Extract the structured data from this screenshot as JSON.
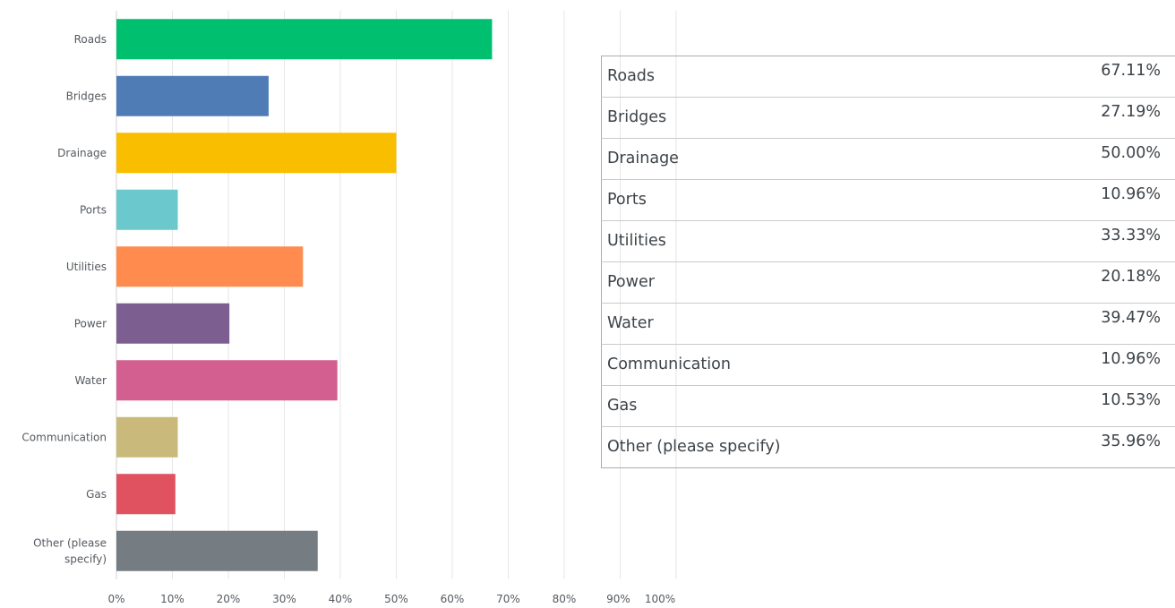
{
  "chart_data": {
    "type": "bar",
    "orientation": "horizontal",
    "categories": [
      "Roads",
      "Bridges",
      "Drainage",
      "Ports",
      "Utilities",
      "Power",
      "Water",
      "Communication",
      "Gas",
      "Other (please specify)"
    ],
    "category_label_lines": [
      [
        "Roads"
      ],
      [
        "Bridges"
      ],
      [
        "Drainage"
      ],
      [
        "Ports"
      ],
      [
        "Utilities"
      ],
      [
        "Power"
      ],
      [
        "Water"
      ],
      [
        "Communication"
      ],
      [
        "Gas"
      ],
      [
        "Other (please",
        "specify)"
      ]
    ],
    "values": [
      67.11,
      27.19,
      50.0,
      10.96,
      33.33,
      20.18,
      39.47,
      10.96,
      10.53,
      35.96
    ],
    "colors": [
      "#00bf6f",
      "#507cb6",
      "#f9be00",
      "#6bc8cd",
      "#ff8b4f",
      "#7d5e90",
      "#d25f90",
      "#c9b97a",
      "#e05260",
      "#757d82"
    ],
    "xlim": [
      0,
      100
    ],
    "x_ticks": [
      "0%",
      "10%",
      "20%",
      "30%",
      "40%",
      "50%",
      "60%",
      "70%",
      "80%",
      "90%",
      "100%"
    ],
    "grid": true,
    "legend": "none"
  },
  "table": {
    "rows": [
      {
        "label": "Roads",
        "value": "67.11%"
      },
      {
        "label": "Bridges",
        "value": "27.19%"
      },
      {
        "label": "Drainage",
        "value": "50.00%"
      },
      {
        "label": "Ports",
        "value": "10.96%"
      },
      {
        "label": "Utilities",
        "value": "33.33%"
      },
      {
        "label": "Power",
        "value": "20.18%"
      },
      {
        "label": "Water",
        "value": "39.47%"
      },
      {
        "label": "Communication",
        "value": "10.96%"
      },
      {
        "label": "Gas",
        "value": "10.53%"
      },
      {
        "label": "Other (please specify)",
        "value": "35.96%"
      }
    ]
  }
}
